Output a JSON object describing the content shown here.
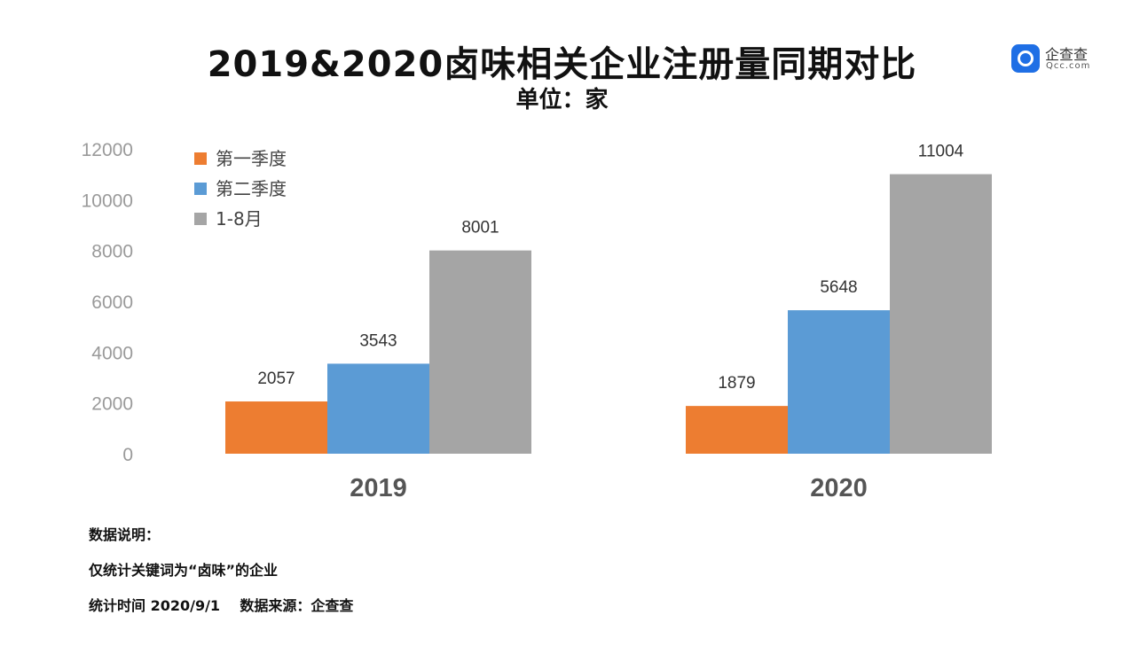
{
  "header": {
    "title": "2019&2020卤味相关企业注册量同期对比",
    "subtitle": "单位：家"
  },
  "logo": {
    "name": "企查查",
    "sub": "Qcc.com"
  },
  "chart_data": {
    "type": "bar",
    "title": "2019&2020卤味相关企业注册量同期对比",
    "subtitle": "单位：家",
    "categories": [
      "2019",
      "2020"
    ],
    "series": [
      {
        "name": "第一季度",
        "values": [
          2057,
          1879
        ],
        "color": "#ed7d31"
      },
      {
        "name": "第二季度",
        "values": [
          3543,
          5648
        ],
        "color": "#5b9bd5"
      },
      {
        "name": "1-8月",
        "values": [
          8001,
          11004
        ],
        "color": "#a5a5a5"
      }
    ],
    "ylim": [
      0,
      12000
    ],
    "yticks": [
      0,
      2000,
      4000,
      6000,
      8000,
      10000,
      12000
    ],
    "legend": "top-left",
    "grid": false,
    "xlabel": "",
    "ylabel": ""
  },
  "notes": {
    "heading": "数据说明：",
    "line1": "仅统计关键词为“卤味”的企业",
    "line2": "统计时间 2020/9/1    数据来源：企查查"
  }
}
